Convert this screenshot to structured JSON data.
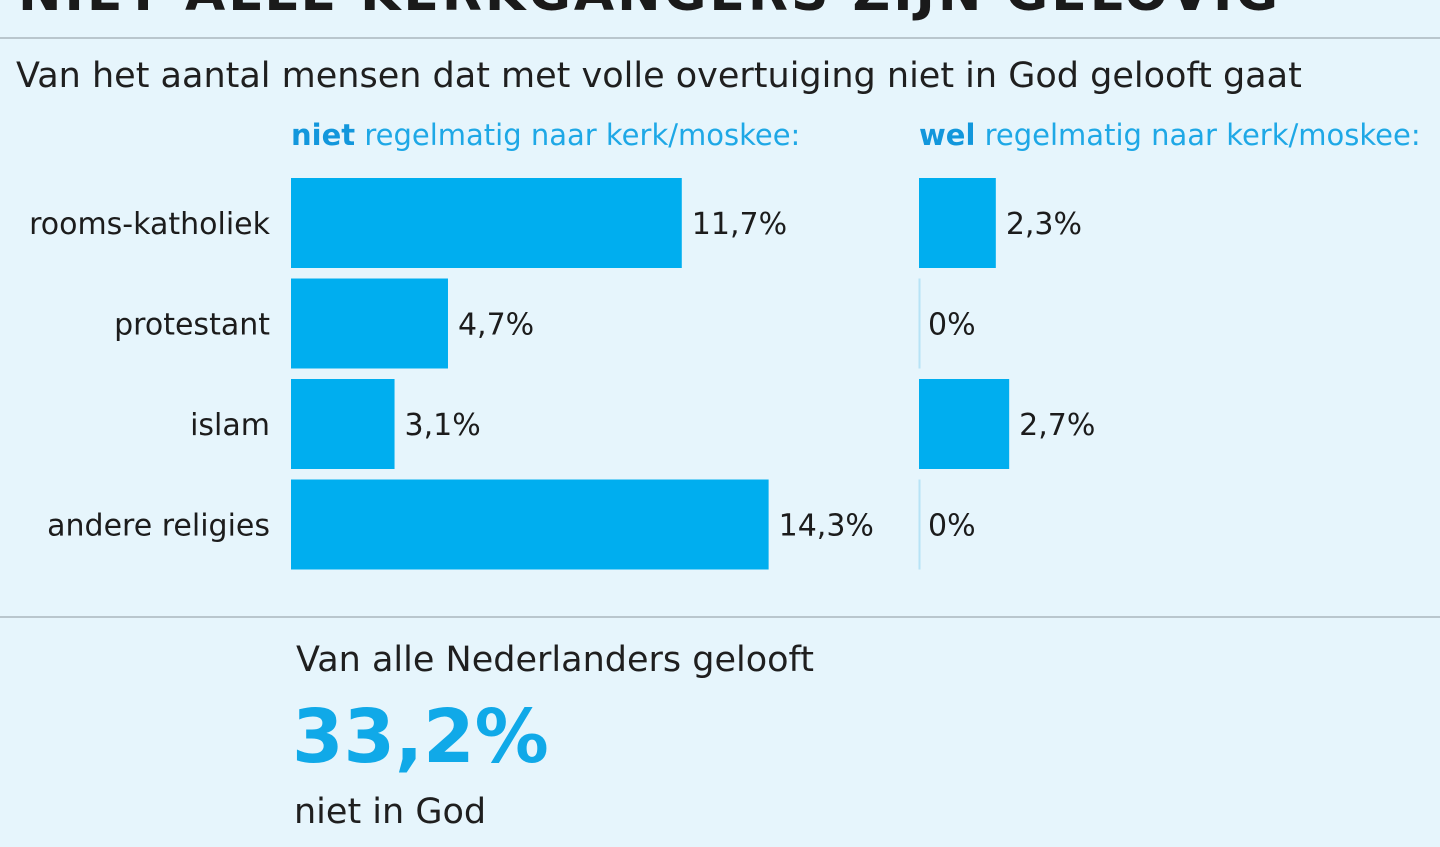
{
  "header": {
    "title": "NIET ALLE KERKGANGERS ZIJN GELOVIG",
    "subtitle": "Van het aantal mensen dat met volle overtuiging niet in God gelooft gaat"
  },
  "groups": {
    "left": {
      "bold": "niet",
      "rest": " regelmatig naar kerk/moskee:"
    },
    "right": {
      "bold": "wel",
      "rest": " regelmatig naar kerk/moskee:"
    }
  },
  "colors": {
    "bar": "#00aeef",
    "accent": "#10a9e8",
    "background": "#e6f5fc"
  },
  "chart_data": {
    "type": "bar",
    "orientation": "horizontal",
    "categories": [
      "rooms-katholiek",
      "protestant",
      "islam",
      "andere religies"
    ],
    "series": [
      {
        "name": "niet regelmatig naar kerk/moskee:",
        "values": [
          11.7,
          4.7,
          3.1,
          14.3
        ],
        "labels": [
          "11,7%",
          "4,7%",
          "3,1%",
          "14,3%"
        ]
      },
      {
        "name": "wel regelmatig naar kerk/moskee:",
        "values": [
          2.3,
          0,
          2.7,
          0
        ],
        "labels": [
          "2,3%",
          "0%",
          "2,7%",
          "0%"
        ]
      }
    ],
    "value_unit": "%",
    "grid": false,
    "legend": "none"
  },
  "footer": {
    "lead": "Van alle Nederlanders gelooft",
    "value": "33,2%",
    "tail": "niet in God"
  }
}
